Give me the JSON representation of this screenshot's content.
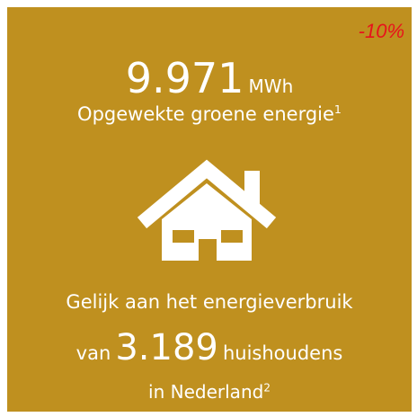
{
  "badge": "-10%",
  "stat": {
    "value": "9.971",
    "unit": "MWh",
    "label": "Opgewekte groene energie",
    "note": "1"
  },
  "equivalent": {
    "line1": "Gelijk aan het energieverbruik",
    "prefix": "van",
    "value": "3.189",
    "unit": "huishoudens",
    "line3": "in Nederland",
    "note": "2"
  }
}
